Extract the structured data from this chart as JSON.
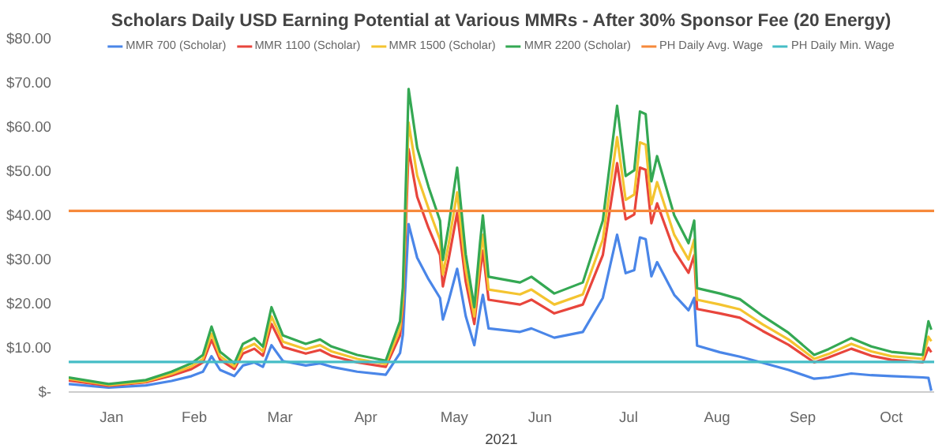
{
  "chart_data": {
    "type": "line",
    "title": "Scholars Daily USD Earning Potential at Various MMRs - After 30% Sponsor Fee (20 Energy)",
    "xlabel": "2021",
    "x": [
      "2021-01-01",
      "2021-01-15",
      "2021-01-28",
      "2021-02-06",
      "2021-02-13",
      "2021-02-17",
      "2021-02-20",
      "2021-02-23",
      "2021-02-28",
      "2021-03-03",
      "2021-03-07",
      "2021-03-10",
      "2021-03-13",
      "2021-03-17",
      "2021-03-25",
      "2021-03-30",
      "2021-04-03",
      "2021-04-12",
      "2021-04-22",
      "2021-04-27",
      "2021-04-28",
      "2021-04-30",
      "2021-05-03",
      "2021-05-07",
      "2021-05-11",
      "2021-05-12",
      "2021-05-14",
      "2021-05-17",
      "2021-05-20",
      "2021-05-23",
      "2021-05-25",
      "2021-05-26",
      "2021-05-28",
      "2021-06-08",
      "2021-06-12",
      "2021-06-20",
      "2021-06-30",
      "2021-07-07",
      "2021-07-12",
      "2021-07-15",
      "2021-07-18",
      "2021-07-20",
      "2021-07-22",
      "2021-07-24",
      "2021-07-26",
      "2021-08-01",
      "2021-08-06",
      "2021-08-08",
      "2021-08-09",
      "2021-08-17",
      "2021-08-24",
      "2021-09-01",
      "2021-09-10",
      "2021-09-19",
      "2021-09-24",
      "2021-10-02",
      "2021-10-09",
      "2021-10-16",
      "2021-10-27",
      "2021-10-29",
      "2021-10-30"
    ],
    "series": [
      {
        "name": "MMR 700 (Scholar)",
        "color": "#4a86e8",
        "values": [
          1.8,
          1.0,
          1.5,
          2.5,
          3.6,
          4.6,
          8.1,
          5.0,
          3.6,
          6.0,
          6.7,
          5.7,
          10.6,
          7.0,
          6.0,
          6.5,
          5.7,
          4.6,
          3.9,
          8.8,
          13,
          38,
          30.4,
          25.5,
          21.3,
          16.4,
          20.6,
          27.9,
          17.2,
          10.6,
          18.5,
          22,
          14.4,
          13.6,
          14.4,
          12.3,
          13.6,
          21.3,
          35.6,
          26.9,
          27.6,
          35,
          34.6,
          26.2,
          29.4,
          22,
          18.5,
          21.3,
          10.5,
          9.0,
          8.0,
          6.6,
          5.0,
          3.0,
          3.3,
          4.2,
          3.8,
          3.6,
          3.3,
          3.2,
          0.3
        ]
      },
      {
        "name": "MMR 1100 (Scholar)",
        "color": "#e8453c",
        "values": [
          2.6,
          1.4,
          2.2,
          3.7,
          5.2,
          6.7,
          11.8,
          7.3,
          5.2,
          8.7,
          9.8,
          8.2,
          15.4,
          10.2,
          8.7,
          9.5,
          8.2,
          6.7,
          5.7,
          12.8,
          19,
          55,
          44.2,
          37.1,
          31,
          23.9,
          30,
          40.6,
          25,
          15.4,
          27,
          32,
          20.9,
          19.8,
          20.9,
          17.8,
          19.8,
          31,
          51.8,
          39.1,
          40.2,
          50.8,
          50.3,
          38.2,
          42.7,
          32,
          27,
          31,
          18.8,
          17.8,
          16.8,
          13.8,
          10.7,
          6.7,
          7.8,
          9.8,
          8.2,
          7.3,
          6.7,
          10,
          9
        ]
      },
      {
        "name": "MMR 1500 (Scholar)",
        "color": "#f4c430",
        "values": [
          3.0,
          1.6,
          2.4,
          4.1,
          5.8,
          7.5,
          13.2,
          8.1,
          5.8,
          9.7,
          10.9,
          9.2,
          17.1,
          11.4,
          9.7,
          10.6,
          9.2,
          7.5,
          6.3,
          14.3,
          21.1,
          61,
          49,
          41.5,
          34.5,
          26.6,
          33.4,
          45.2,
          27.8,
          17.1,
          30,
          35.6,
          23.2,
          22.1,
          23.2,
          19.8,
          22.1,
          34.5,
          57.7,
          43.5,
          44.7,
          56.5,
          56,
          42.5,
          47.5,
          35.6,
          30,
          34.5,
          20.9,
          19.8,
          18.7,
          15.3,
          11.9,
          7.5,
          8.6,
          10.9,
          9.2,
          8.1,
          7.5,
          12.5,
          11.5
        ]
      },
      {
        "name": "MMR 2200 (Scholar)",
        "color": "#34a853",
        "values": [
          3.3,
          1.8,
          2.7,
          4.6,
          6.5,
          8.4,
          14.8,
          9.1,
          6.5,
          10.9,
          12.2,
          10.3,
          19.2,
          12.8,
          10.9,
          11.9,
          10.3,
          8.4,
          7.1,
          16,
          23.7,
          68.6,
          55.3,
          46.4,
          38.8,
          29.9,
          37.5,
          50.8,
          31.2,
          19.2,
          33.7,
          40,
          26.1,
          24.8,
          26.1,
          22.3,
          24.8,
          38.8,
          64.8,
          48.9,
          50.2,
          63.5,
          62.9,
          47.7,
          53.4,
          40,
          33.7,
          38.8,
          23.5,
          22.3,
          21,
          17.2,
          13.4,
          8.4,
          9.7,
          12.2,
          10.3,
          9.1,
          8.4,
          16,
          14.1
        ]
      },
      {
        "name": "PH Daily Avg. Wage",
        "color": "#f6893b",
        "x": [
          "2021-01-01",
          "2021-10-31"
        ],
        "values": [
          41,
          41
        ]
      },
      {
        "name": "PH Daily Min. Wage",
        "color": "#46bdc6",
        "x": [
          "2021-01-01",
          "2021-10-31"
        ],
        "values": [
          6.8,
          6.8
        ]
      }
    ],
    "xlim": [
      "2021-01-01",
      "2021-10-31"
    ],
    "xticks": [
      {
        "value": "2021-01-16",
        "label": "Jan"
      },
      {
        "value": "2021-02-14",
        "label": "Feb"
      },
      {
        "value": "2021-03-16",
        "label": "Mar"
      },
      {
        "value": "2021-04-15",
        "label": "Apr"
      },
      {
        "value": "2021-05-16",
        "label": "May"
      },
      {
        "value": "2021-06-15",
        "label": "Jun"
      },
      {
        "value": "2021-07-16",
        "label": "Jul"
      },
      {
        "value": "2021-08-16",
        "label": "Aug"
      },
      {
        "value": "2021-09-15",
        "label": "Sep"
      },
      {
        "value": "2021-10-16",
        "label": "Oct"
      }
    ],
    "ylim": [
      0,
      80
    ],
    "yticks": [
      {
        "value": 0,
        "label": "$-"
      },
      {
        "value": 10,
        "label": "$10.00"
      },
      {
        "value": 20,
        "label": "$20.00"
      },
      {
        "value": 30,
        "label": "$30.00"
      },
      {
        "value": 40,
        "label": "$40.00"
      },
      {
        "value": 50,
        "label": "$50.00"
      },
      {
        "value": 60,
        "label": "$60.00"
      },
      {
        "value": 70,
        "label": "$70.00"
      },
      {
        "value": 80,
        "label": "$80.00"
      }
    ],
    "legend": "top",
    "line_style": "solid"
  }
}
